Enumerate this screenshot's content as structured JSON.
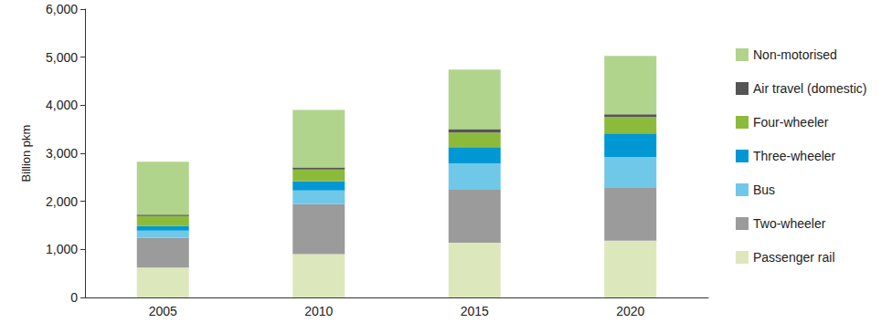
{
  "chart_data": {
    "type": "bar",
    "stacked": true,
    "y_label": "Billion pkm",
    "categories": [
      "2005",
      "2010",
      "2015",
      "2020"
    ],
    "series": [
      {
        "name": "Passenger rail",
        "color": "#dce8bc",
        "values": [
          620,
          900,
          1140,
          1180
        ]
      },
      {
        "name": "Two-wheeler",
        "color": "#9b9b9b",
        "values": [
          620,
          1040,
          1100,
          1100
        ]
      },
      {
        "name": "Bus",
        "color": "#70c8e8",
        "values": [
          150,
          285,
          550,
          645
        ]
      },
      {
        "name": "Three-wheeler",
        "color": "#0098d4",
        "values": [
          95,
          190,
          340,
          490
        ]
      },
      {
        "name": "Four-wheeler",
        "color": "#8cbb3c",
        "values": [
          210,
          250,
          300,
          340
        ]
      },
      {
        "name": "Air travel (domestic)",
        "color": "#555555",
        "values": [
          30,
          40,
          75,
          55
        ]
      },
      {
        "name": "Non-motorised",
        "color": "#b0d48c",
        "values": [
          1100,
          1195,
          1235,
          1215
        ]
      }
    ],
    "ylim": [
      0,
      6000
    ],
    "yticks": [
      0,
      {
        "value": 1000,
        "label": "1,000"
      },
      {
        "value": 2000,
        "label": "2,000"
      },
      {
        "value": 3000,
        "label": "3,000"
      },
      {
        "value": 4000,
        "label": "4,000"
      },
      {
        "value": 5000,
        "label": "5,000"
      },
      {
        "value": 6000,
        "label": "6,000"
      }
    ],
    "grid": false,
    "legend": "right"
  }
}
